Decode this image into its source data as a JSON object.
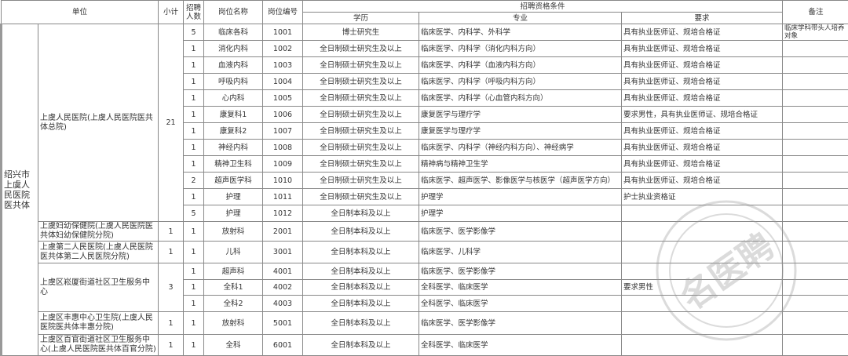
{
  "header": {
    "unit": "单位",
    "subtotal": "小计",
    "hire_count": "招聘人数",
    "position_name": "岗位名称",
    "position_code": "岗位编号",
    "qualifications": "招聘资格条件",
    "education": "学历",
    "major": "专业",
    "requirement": "要求",
    "remarks": "备注"
  },
  "group": "绍兴市上虞人民医院医共体",
  "units": [
    {
      "name": "上虞人民医院(上虞人民医院医共体总院)",
      "subtotal": "21"
    },
    {
      "name": "上虞妇幼保健院(上虞人民医院医共体妇幼保健院分院)",
      "subtotal": "1"
    },
    {
      "name": "上虞第二人民医院(上虞人民医院医共体第二人民医院分院)",
      "subtotal": "1"
    },
    {
      "name": "上虞区崧厦街道社区卫生服务中心",
      "subtotal": "3"
    },
    {
      "name": "上虞区丰惠中心卫生院(上虞人民医院医共体丰惠分院)",
      "subtotal": "1"
    },
    {
      "name": "上虞区百官街道社区卫生服务中心(上虞人民医院医共体百官分院)",
      "subtotal": "1"
    }
  ],
  "rows": [
    {
      "count": "5",
      "name": "临床各科",
      "code": "1001",
      "edu": "博士研究生",
      "major": "临床医学、内科学、外科学",
      "req": "具有执业医师证、规培合格证",
      "note": "临床学科带头人培养对象"
    },
    {
      "count": "1",
      "name": "消化内科",
      "code": "1002",
      "edu": "全日制硕士研究生及以上",
      "major": "临床医学、内科学（消化内科方向）",
      "req": "具有执业医师证、规培合格证",
      "note": ""
    },
    {
      "count": "1",
      "name": "血液内科",
      "code": "1003",
      "edu": "全日制硕士研究生及以上",
      "major": "临床医学、内科学（血液内科方向）",
      "req": "具有执业医师证、规培合格证",
      "note": ""
    },
    {
      "count": "1",
      "name": "呼吸内科",
      "code": "1004",
      "edu": "全日制硕士研究生及以上",
      "major": "临床医学、内科学（呼吸内科方向）",
      "req": "具有执业医师证、规培合格证",
      "note": ""
    },
    {
      "count": "1",
      "name": "心内科",
      "code": "1005",
      "edu": "全日制硕士研究生及以上",
      "major": "临床医学、内科学（心血管内科方向）",
      "req": "具有执业医师证、规培合格证",
      "note": ""
    },
    {
      "count": "1",
      "name": "康复科1",
      "code": "1006",
      "edu": "全日制硕士研究生及以上",
      "major": "康复医学与理疗学",
      "req": "要求男性，具有执业医师证、规培合格证",
      "note": ""
    },
    {
      "count": "1",
      "name": "康复科2",
      "code": "1007",
      "edu": "全日制硕士研究生及以上",
      "major": "康复医学与理疗学",
      "req": "具有执业医师证、规培合格证",
      "note": ""
    },
    {
      "count": "1",
      "name": "神经内科",
      "code": "1008",
      "edu": "全日制硕士研究生及以上",
      "major": "临床医学、内科学（神经内科方向）、神经病学",
      "req": "具有执业医师证、规培合格证",
      "note": ""
    },
    {
      "count": "1",
      "name": "精神卫生科",
      "code": "1009",
      "edu": "全日制硕士研究生及以上",
      "major": "精神病与精神卫生学",
      "req": "具有执业医师证、规培合格证",
      "note": ""
    },
    {
      "count": "2",
      "name": "超声医学科",
      "code": "1010",
      "edu": "全日制硕士研究生及以上",
      "major": "临床医学、超声医学、影像医学与核医学（超声医学方向）",
      "req": "具有执业医师证、规培合格证",
      "note": ""
    },
    {
      "count": "1",
      "name": "护理",
      "code": "1011",
      "edu": "全日制硕士研究生及以上",
      "major": "护理学",
      "req": "护士执业资格证",
      "note": ""
    },
    {
      "count": "5",
      "name": "护理",
      "code": "1012",
      "edu": "全日制本科及以上",
      "major": "护理学",
      "req": "",
      "note": ""
    },
    {
      "count": "1",
      "name": "放射科",
      "code": "2001",
      "edu": "全日制本科及以上",
      "major": "临床医学、医学影像学",
      "req": "",
      "note": ""
    },
    {
      "count": "1",
      "name": "儿科",
      "code": "3001",
      "edu": "全日制本科及以上",
      "major": "临床医学、儿科学",
      "req": "",
      "note": ""
    },
    {
      "count": "1",
      "name": "超声科",
      "code": "4001",
      "edu": "全日制本科及以上",
      "major": "临床医学、医学影像学",
      "req": "",
      "note": ""
    },
    {
      "count": "1",
      "name": "全科1",
      "code": "4002",
      "edu": "全日制本科及以上",
      "major": "全科医学、临床医学",
      "req": "要求男性",
      "note": ""
    },
    {
      "count": "1",
      "name": "全科2",
      "code": "4003",
      "edu": "全日制本科及以上",
      "major": "全科医学、临床医学",
      "req": "",
      "note": ""
    },
    {
      "count": "1",
      "name": "放射科",
      "code": "5001",
      "edu": "全日制本科及以上",
      "major": "临床医学、医学影像学",
      "req": "",
      "note": ""
    },
    {
      "count": "1",
      "name": "全科",
      "code": "6001",
      "edu": "全日制本科及以上",
      "major": "全科医学、临床医学",
      "req": "",
      "note": ""
    }
  ],
  "watermark": {
    "text": "名医聘",
    "color": "#999999"
  }
}
